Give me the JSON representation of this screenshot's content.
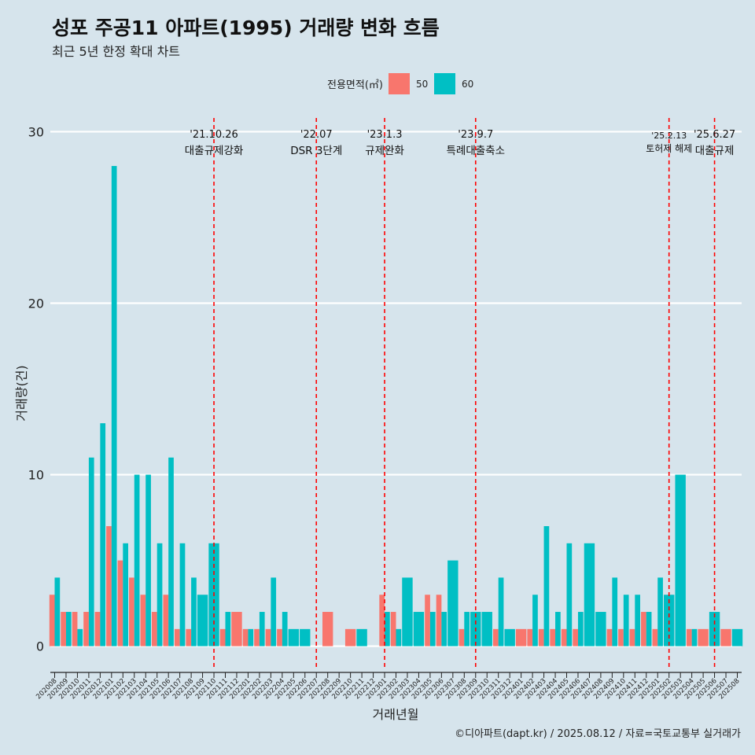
{
  "header": {
    "title": "성포 주공11 아파트(1995) 거래량 변화 흐름",
    "subtitle": "최근 5년 한정 확대 차트"
  },
  "footer": {
    "caption": "©디아파트(dapt.kr) / 2025.08.12 / 자료=국토교통부 실거래가"
  },
  "colors": {
    "background": "#d6e4ec",
    "series_50": "#f8766d",
    "series_60": "#00bfc4",
    "event_line": "#ff0000",
    "grid": "#ffffff"
  },
  "chart_data": {
    "type": "bar",
    "xlabel": "거래년월",
    "ylabel": "거래량(건)",
    "ylim": [
      -1.3,
      30.8
    ],
    "yticks": [
      0,
      10,
      20,
      30
    ],
    "legend": {
      "title": "전용면적(㎡)",
      "position": "top"
    },
    "categories": [
      "202008",
      "202009",
      "202010",
      "202011",
      "202012",
      "202101",
      "202102",
      "202103",
      "202104",
      "202105",
      "202106",
      "202107",
      "202108",
      "202109",
      "202110",
      "202111",
      "202112",
      "202201",
      "202202",
      "202203",
      "202204",
      "202205",
      "202206",
      "202207",
      "202208",
      "202209",
      "202210",
      "202211",
      "202212",
      "202301",
      "202302",
      "202303",
      "202304",
      "202305",
      "202306",
      "202307",
      "202308",
      "202309",
      "202310",
      "202311",
      "202312",
      "202401",
      "202402",
      "202403",
      "202404",
      "202405",
      "202406",
      "202407",
      "202408",
      "202409",
      "202410",
      "202411",
      "202412",
      "202501",
      "202502",
      "202503",
      "202504",
      "202505",
      "202506",
      "202507",
      "202508"
    ],
    "series": [
      {
        "name": "50",
        "color": "#f8766d",
        "values": [
          3,
          2,
          2,
          2,
          2,
          7,
          5,
          4,
          3,
          2,
          3,
          1,
          1,
          0,
          0,
          1,
          2,
          1,
          1,
          1,
          1,
          0,
          0,
          0,
          2,
          0,
          1,
          0,
          0,
          3,
          2,
          0,
          0,
          3,
          3,
          0,
          1,
          0,
          0,
          1,
          0,
          1,
          1,
          1,
          1,
          1,
          1,
          0,
          0,
          1,
          1,
          1,
          2,
          1,
          0,
          0,
          1,
          1,
          0,
          1,
          0
        ]
      },
      {
        "name": "60",
        "color": "#00bfc4",
        "values": [
          4,
          2,
          1,
          11,
          13,
          28,
          6,
          10,
          10,
          6,
          11,
          6,
          4,
          3,
          6,
          2,
          0,
          1,
          2,
          4,
          2,
          1,
          1,
          0,
          0,
          0,
          0,
          1,
          0,
          2,
          1,
          4,
          2,
          2,
          2,
          5,
          2,
          2,
          2,
          4,
          1,
          0,
          3,
          7,
          2,
          6,
          2,
          6,
          2,
          4,
          3,
          3,
          2,
          4,
          3,
          10,
          1,
          0,
          2,
          0,
          1
        ]
      }
    ],
    "events": [
      {
        "month": "202110",
        "date": "'21.10.26",
        "label": "대출규제강화"
      },
      {
        "month": "202207",
        "date": "'22.07",
        "label": "DSR 3단계"
      },
      {
        "month": "202301",
        "date": "'23.1.3",
        "label": "규제완화"
      },
      {
        "month": "202309",
        "date": "'23.9.7",
        "label": "특례대출축소"
      },
      {
        "month": "202502",
        "date": "'25.2.13",
        "label": "토허제 해제"
      },
      {
        "month": "202506",
        "date": "'25.6.27",
        "label": "대출규제"
      }
    ]
  }
}
